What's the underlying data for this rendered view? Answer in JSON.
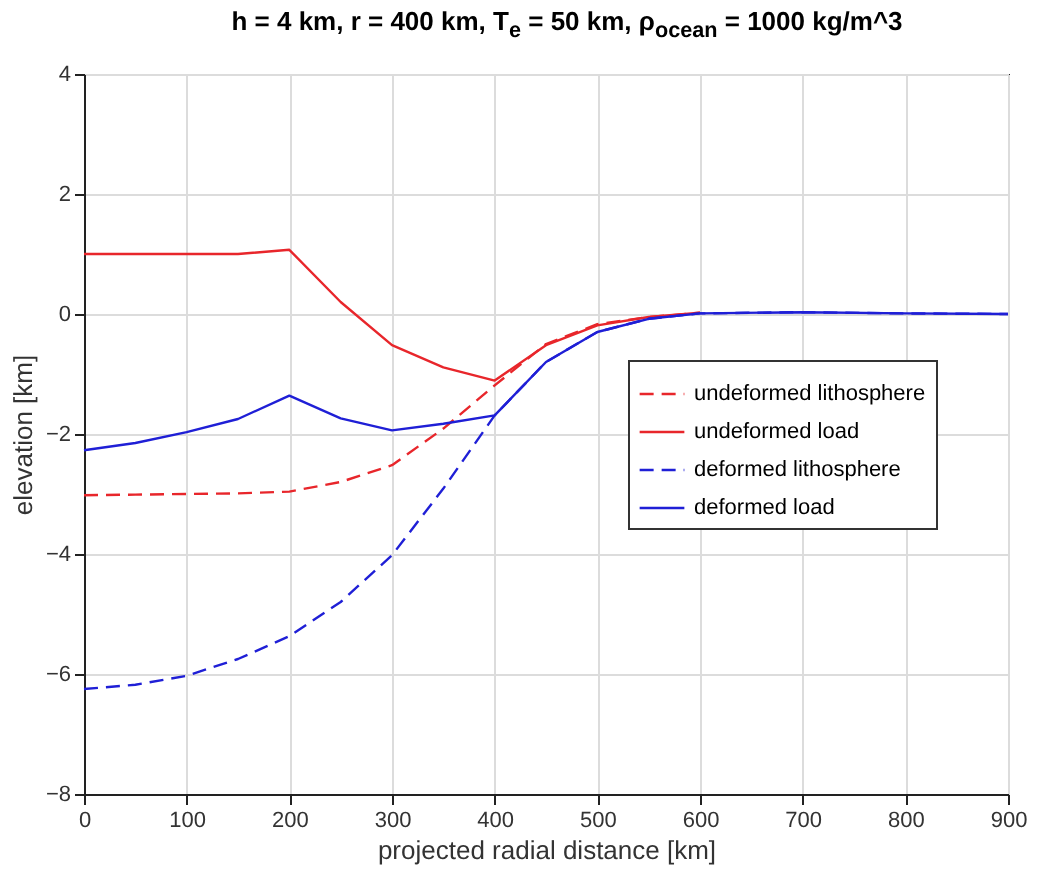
{
  "chart_data": {
    "type": "line",
    "title": "h = 4 km, r = 400 km, T$_{e}$ = 50 km, ρ$_{ocean}$ = 1000 kg/m^3",
    "xlabel": "projected radial distance [km]",
    "ylabel": "elevation [km]",
    "x": [
      0,
      50,
      100,
      150,
      200,
      250,
      300,
      350,
      400,
      450,
      500,
      550,
      600,
      700,
      800,
      900
    ],
    "series": [
      {
        "name": "undeformed lithosphere",
        "color": "#e8262b",
        "line_style": "dashed",
        "values": [
          -3.02,
          -3.01,
          -3.0,
          -2.99,
          -2.96,
          -2.8,
          -2.52,
          -1.91,
          -1.19,
          -0.5,
          -0.17,
          -0.05,
          0.02,
          null,
          null,
          null
        ]
      },
      {
        "name": "undeformed load",
        "color": "#e8262b",
        "line_style": "solid",
        "values": [
          1.0,
          1.0,
          1.0,
          1.0,
          1.07,
          0.2,
          -0.52,
          -0.89,
          -1.11,
          -0.52,
          -0.19,
          -0.05,
          0.02,
          null,
          null,
          null
        ]
      },
      {
        "name": "deformed lithosphere",
        "color": "#1f1fd6",
        "line_style": "dashed",
        "values": [
          -6.25,
          -6.18,
          -6.03,
          -5.75,
          -5.37,
          -4.8,
          -4.02,
          -2.91,
          -1.69,
          -0.8,
          -0.3,
          -0.08,
          0.01,
          0.03,
          0.01,
          0
        ]
      },
      {
        "name": "deformed load",
        "color": "#1f1fd6",
        "line_style": "solid",
        "values": [
          -2.27,
          -2.15,
          -1.97,
          -1.75,
          -1.36,
          -1.74,
          -1.94,
          -1.83,
          -1.69,
          -0.8,
          -0.3,
          -0.08,
          0.01,
          0.03,
          0.01,
          0
        ]
      }
    ],
    "xlim": [
      0,
      900
    ],
    "xticks": [
      0,
      100,
      200,
      300,
      400,
      500,
      600,
      700,
      800,
      900
    ],
    "ylim": [
      -8,
      4
    ],
    "yticks": [
      -8,
      -6,
      -4,
      -2,
      0,
      2,
      4
    ],
    "grid": true,
    "legend": "right"
  }
}
